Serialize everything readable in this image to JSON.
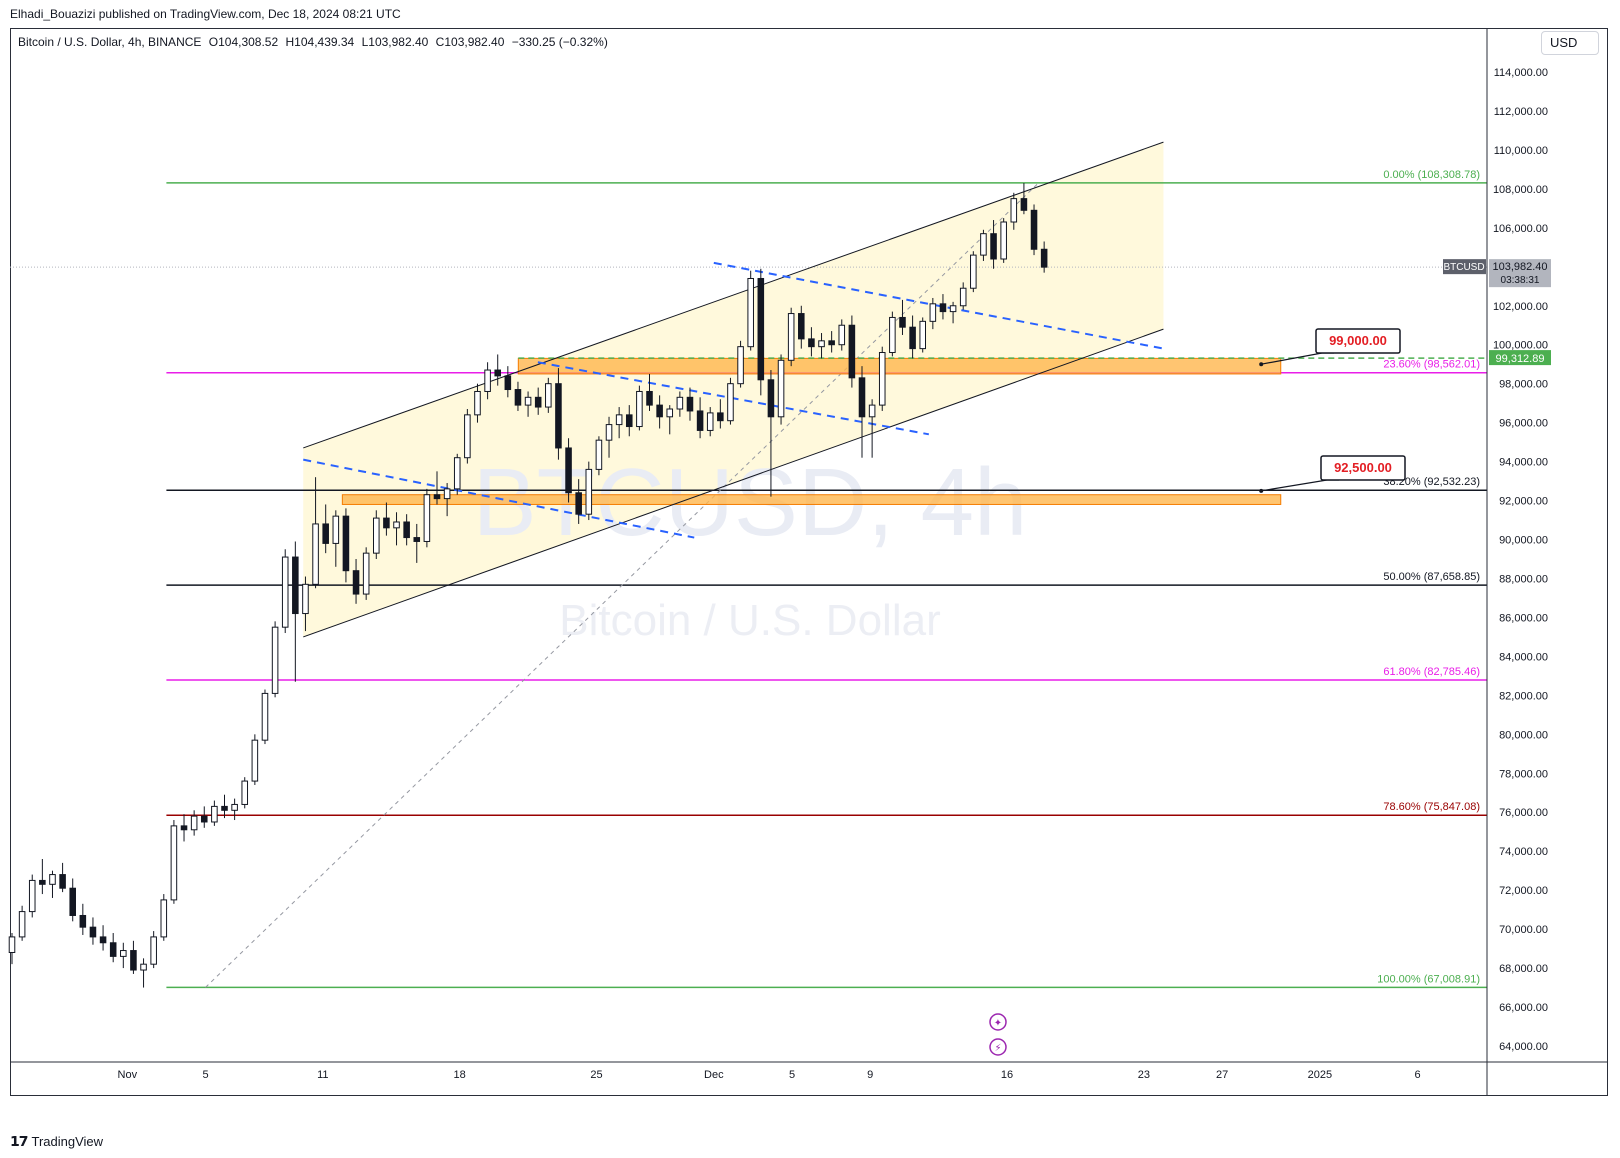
{
  "header": {
    "publisher": "Elhadi_Bouazizi published on TradingView.com, Dec 18, 2024 08:21 UTC"
  },
  "legend": {
    "symbol": "Bitcoin / U.S. Dollar, 4h, BINANCE",
    "open_label": "O",
    "open": "104,308.52",
    "high_label": "H",
    "high": "104,439.34",
    "low_label": "L",
    "low": "103,982.40",
    "close_label": "C",
    "close": "103,982.40",
    "change": "−330.25 (−0.32%)"
  },
  "currency": "USD",
  "watermark": {
    "ticker": "BTCUSD, 4h",
    "name": "Bitcoin / U.S. Dollar"
  },
  "price_tag": {
    "symbol": "BTCUSD",
    "price": "103,982.40",
    "countdown": "03:38:31"
  },
  "level_tag": "99,312.89",
  "callouts": {
    "upper": "99,000.00",
    "lower": "92,500.00"
  },
  "footer": {
    "brand": "TradingView"
  },
  "colors": {
    "up": "#131722",
    "down": "#131722",
    "fib_green": "#4caf50",
    "fib_magenta": "#e91ee8",
    "fib_black": "#131722",
    "fib_red": "#990000",
    "zone": "#ffb74d",
    "channel_fill": "#fff9dc",
    "dashed_blue": "#2962ff"
  },
  "chart_data": {
    "type": "candlestick",
    "title": "Bitcoin / U.S. Dollar, 4h, BINANCE",
    "ylim": [
      63000,
      116000
    ],
    "y_ticks": [
      64000,
      66000,
      68000,
      70000,
      72000,
      74000,
      76000,
      78000,
      80000,
      82000,
      84000,
      86000,
      88000,
      90000,
      92000,
      94000,
      96000,
      98000,
      100000,
      102000,
      104000,
      106000,
      108000,
      110000,
      112000,
      114000
    ],
    "y_tick_labels": [
      "64,000.00",
      "66,000.00",
      "68,000.00",
      "70,000.00",
      "72,000.00",
      "74,000.00",
      "76,000.00",
      "78,000.00",
      "80,000.00",
      "82,000.00",
      "84,000.00",
      "86,000.00",
      "88,000.00",
      "90,000.00",
      "92,000.00",
      "94,000.00",
      "96,000.00",
      "98,000.00",
      "100,000.00",
      "102,000.00",
      "104,000.00",
      "106,000.00",
      "108,000.00",
      "110,000.00",
      "112,000.00",
      "114,000.00"
    ],
    "x_ticks": [
      {
        "date": "2024-11-01",
        "label": "Nov"
      },
      {
        "date": "2024-11-05",
        "label": "5"
      },
      {
        "date": "2024-11-11",
        "label": "11"
      },
      {
        "date": "2024-11-18",
        "label": "18"
      },
      {
        "date": "2024-11-25",
        "label": "25"
      },
      {
        "date": "2024-12-01",
        "label": "Dec"
      },
      {
        "date": "2024-12-05",
        "label": "5"
      },
      {
        "date": "2024-12-09",
        "label": "9"
      },
      {
        "date": "2024-12-16",
        "label": "16"
      },
      {
        "date": "2024-12-23",
        "label": "23"
      },
      {
        "date": "2024-12-27",
        "label": "27"
      },
      {
        "date": "2025-01-01",
        "label": "2025"
      },
      {
        "date": "2025-01-06",
        "label": "6"
      }
    ],
    "fib_levels": [
      {
        "label": "0.00% (108,308.78)",
        "price": 108308.78,
        "color": "#4caf50"
      },
      {
        "label": "23.60% (98,562.01)",
        "price": 98562.01,
        "color": "#e91ee8"
      },
      {
        "label": "38.20% (92,532.23)",
        "price": 92532.23,
        "color": "#131722"
      },
      {
        "label": "50.00% (87,658.85)",
        "price": 87658.85,
        "color": "#131722"
      },
      {
        "label": "61.80% (82,785.46)",
        "price": 82785.46,
        "color": "#e91ee8"
      },
      {
        "label": "78.60% (75,847.08)",
        "price": 75847.08,
        "color": "#990000"
      },
      {
        "label": "100.00% (67,008.91)",
        "price": 67008.91,
        "color": "#4caf50"
      }
    ],
    "current_price": 103982.4,
    "dashed_level": 99312.89,
    "zones": [
      {
        "from": "2024-11-21",
        "to": "2024-12-30",
        "low": 98500,
        "high": 99300
      },
      {
        "from": "2024-11-12",
        "to": "2024-12-30",
        "low": 91800,
        "high": 92300
      }
    ],
    "channel": {
      "from": "2024-11-10",
      "to": "2024-12-24",
      "upper_start": 94700,
      "upper_end": 110400,
      "lower_start": 85000,
      "lower_end": 100800
    },
    "trend_lines": [
      {
        "x1": "2024-11-10",
        "y1": 94100,
        "x2": "2024-11-30",
        "y2": 90100
      },
      {
        "x1": "2024-11-22",
        "y1": 99100,
        "x2": "2024-12-12",
        "y2": 95400
      },
      {
        "x1": "2024-12-01",
        "y1": 104200,
        "x2": "2024-12-24",
        "y2": 99800
      }
    ],
    "fib_diagonal": {
      "x1": "2024-11-05",
      "y1": 67008.91,
      "x2": "2024-12-17",
      "y2": 108308.78
    },
    "callout_points": [
      {
        "date": "2024-12-29",
        "price": 99000
      },
      {
        "date": "2024-12-29",
        "price": 92500
      }
    ],
    "candles": [
      [
        68800,
        69800,
        68200,
        69600
      ],
      [
        69600,
        71200,
        69400,
        70900
      ],
      [
        70900,
        72800,
        70600,
        72500
      ],
      [
        72500,
        73600,
        71800,
        72300
      ],
      [
        72300,
        73000,
        71600,
        72800
      ],
      [
        72800,
        73400,
        71900,
        72100
      ],
      [
        72100,
        72600,
        70400,
        70700
      ],
      [
        70700,
        71300,
        69700,
        70100
      ],
      [
        70100,
        70600,
        69200,
        69600
      ],
      [
        69600,
        70200,
        68900,
        69300
      ],
      [
        69300,
        69800,
        68300,
        68600
      ],
      [
        68600,
        69300,
        68000,
        68900
      ],
      [
        68900,
        69400,
        67700,
        67900
      ],
      [
        67900,
        68500,
        67000,
        68200
      ],
      [
        68200,
        69900,
        68000,
        69600
      ],
      [
        69600,
        71800,
        69400,
        71500
      ],
      [
        71500,
        75600,
        71300,
        75300
      ],
      [
        75300,
        75900,
        74500,
        75100
      ],
      [
        75100,
        76100,
        74800,
        75800
      ],
      [
        75800,
        76300,
        75200,
        75500
      ],
      [
        75500,
        76600,
        75300,
        76300
      ],
      [
        76300,
        76900,
        75700,
        76100
      ],
      [
        76100,
        76700,
        75600,
        76400
      ],
      [
        76400,
        77800,
        76200,
        77600
      ],
      [
        77600,
        80000,
        77400,
        79700
      ],
      [
        79700,
        82300,
        79500,
        82100
      ],
      [
        82100,
        85800,
        81900,
        85500
      ],
      [
        85500,
        89500,
        85200,
        89100
      ],
      [
        89100,
        89900,
        82700,
        86200
      ],
      [
        86200,
        88100,
        85300,
        87700
      ],
      [
        87700,
        93200,
        87500,
        90800
      ],
      [
        90800,
        91800,
        89300,
        89800
      ],
      [
        89800,
        91500,
        88600,
        91200
      ],
      [
        91200,
        91600,
        87800,
        88400
      ],
      [
        88400,
        89000,
        86700,
        87200
      ],
      [
        87200,
        89600,
        86900,
        89300
      ],
      [
        89300,
        91500,
        89000,
        91100
      ],
      [
        91100,
        91900,
        90200,
        90600
      ],
      [
        90600,
        91400,
        89700,
        90900
      ],
      [
        90900,
        91300,
        89700,
        90100
      ],
      [
        90100,
        90800,
        88800,
        89900
      ],
      [
        89900,
        92600,
        89600,
        92300
      ],
      [
        92300,
        93500,
        91800,
        92100
      ],
      [
        92100,
        92900,
        91200,
        92600
      ],
      [
        92600,
        94400,
        92300,
        94200
      ],
      [
        94200,
        96700,
        93900,
        96400
      ],
      [
        96400,
        98000,
        96000,
        97600
      ],
      [
        97600,
        99100,
        97200,
        98700
      ],
      [
        98700,
        99500,
        97900,
        98400
      ],
      [
        98400,
        98900,
        97300,
        97700
      ],
      [
        97700,
        98100,
        96600,
        96900
      ],
      [
        96900,
        97600,
        96300,
        97300
      ],
      [
        97300,
        97800,
        96400,
        96800
      ],
      [
        96800,
        98300,
        96500,
        98000
      ],
      [
        98000,
        98800,
        94100,
        94700
      ],
      [
        94700,
        95200,
        91900,
        92400
      ],
      [
        92400,
        93100,
        90800,
        91300
      ],
      [
        91300,
        94000,
        91000,
        93600
      ],
      [
        93600,
        95300,
        93300,
        95100
      ],
      [
        95100,
        96300,
        94200,
        95900
      ],
      [
        95900,
        96800,
        95200,
        96400
      ],
      [
        96400,
        96900,
        95300,
        95800
      ],
      [
        95800,
        97900,
        95600,
        97600
      ],
      [
        97600,
        98500,
        96600,
        96900
      ],
      [
        96900,
        97400,
        95700,
        96300
      ],
      [
        96300,
        96900,
        95400,
        96700
      ],
      [
        96700,
        97600,
        96300,
        97300
      ],
      [
        97300,
        97800,
        96100,
        96600
      ],
      [
        96600,
        97300,
        95200,
        95600
      ],
      [
        95600,
        96800,
        95300,
        96500
      ],
      [
        96500,
        97200,
        95700,
        96100
      ],
      [
        96100,
        98300,
        95900,
        98000
      ],
      [
        98000,
        100200,
        97800,
        99900
      ],
      [
        99900,
        103800,
        99700,
        103400
      ],
      [
        103400,
        103900,
        97400,
        98200
      ],
      [
        98200,
        98700,
        92200,
        96300
      ],
      [
        96300,
        99500,
        95900,
        99200
      ],
      [
        99200,
        101900,
        98900,
        101600
      ],
      [
        101600,
        102000,
        99800,
        100300
      ],
      [
        100300,
        100900,
        99400,
        99900
      ],
      [
        99900,
        100600,
        99300,
        100200
      ],
      [
        100200,
        100700,
        99600,
        100000
      ],
      [
        100000,
        101300,
        99700,
        101000
      ],
      [
        101000,
        101500,
        97800,
        98300
      ],
      [
        98300,
        98900,
        94200,
        96300
      ],
      [
        96300,
        97200,
        94200,
        96900
      ],
      [
        96900,
        99900,
        96600,
        99600
      ],
      [
        99600,
        101700,
        99400,
        101400
      ],
      [
        101400,
        102300,
        100500,
        100900
      ],
      [
        100900,
        101500,
        99300,
        99800
      ],
      [
        99800,
        101400,
        99600,
        101200
      ],
      [
        101200,
        102400,
        100800,
        102100
      ],
      [
        102100,
        102600,
        101300,
        101700
      ],
      [
        101700,
        102200,
        101100,
        102000
      ],
      [
        102000,
        103200,
        101800,
        102900
      ],
      [
        102900,
        104800,
        102700,
        104600
      ],
      [
        104600,
        105900,
        104300,
        105700
      ],
      [
        105700,
        106400,
        103900,
        104400
      ],
      [
        104400,
        106500,
        104200,
        106300
      ],
      [
        106300,
        107800,
        105900,
        107500
      ],
      [
        107500,
        108300,
        106700,
        106900
      ],
      [
        106900,
        107200,
        104600,
        104900
      ],
      [
        104900,
        105300,
        103700,
        103982
      ]
    ]
  }
}
